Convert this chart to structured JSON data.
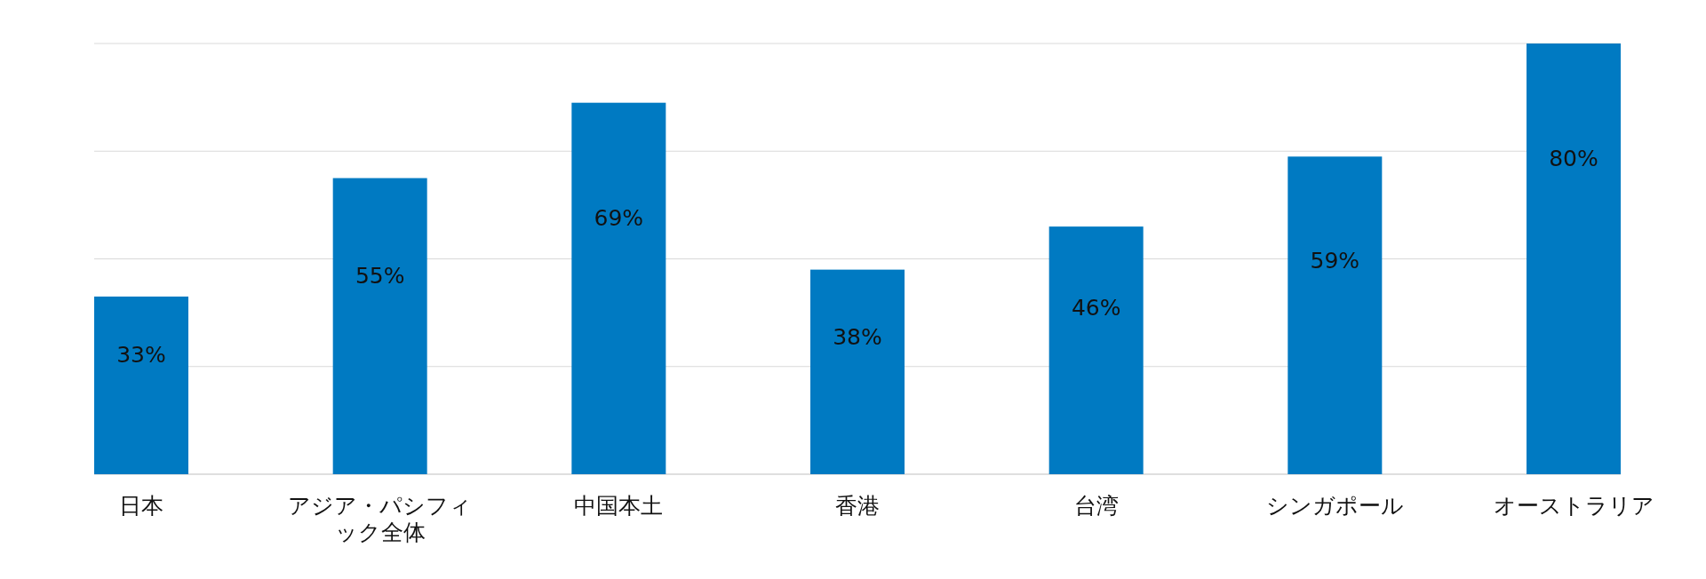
{
  "chart_data": {
    "type": "bar",
    "categories": [
      "日本",
      "アジア・パシフィック全体",
      "中国本土",
      "香港",
      "台湾",
      "シンガポール",
      "オーストラリア"
    ],
    "values": [
      33,
      55,
      69,
      38,
      46,
      59,
      80
    ],
    "value_labels": [
      "33%",
      "55%",
      "69%",
      "38%",
      "46%",
      "59%",
      "80%"
    ],
    "color": "#007ac2",
    "grid": "y"
  }
}
